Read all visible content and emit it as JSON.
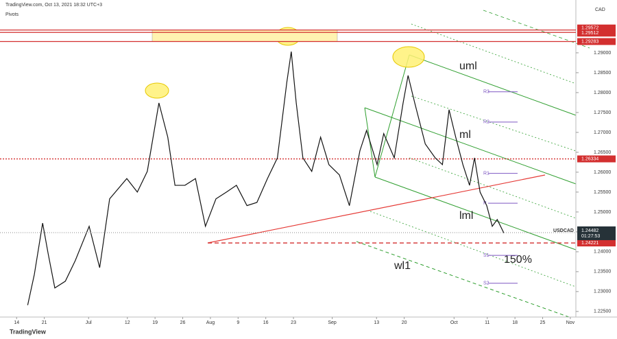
{
  "header": {
    "source": "TradingView.com, Oct 13, 2021 18:32 UTC+3",
    "indicator": "Pivots",
    "currency": "CAD",
    "footer": "TradingView"
  },
  "chart_data": {
    "type": "line",
    "series": [
      {
        "name": "USDCAD",
        "color": "#111111",
        "x": [
          5,
          6.2,
          7.7,
          8.7,
          9.9,
          11.8,
          13.6,
          16.1,
          18,
          19.8,
          22.9,
          24.8,
          26.6,
          28.7,
          30.3,
          31.6,
          33.4,
          35.3,
          37.1,
          39,
          40.9,
          42.7,
          44.6,
          46.4,
          48.3,
          50.1,
          51.8,
          52.6,
          53.5,
          54.7,
          56.3,
          57.9,
          59.4,
          61.3,
          63.1,
          65,
          66.2,
          68.1,
          69.3,
          71.2,
          72.8,
          73.7,
          74.9,
          76.8,
          78.6,
          79.9,
          81.1,
          82.3,
          83.6,
          84.8,
          85.7,
          86.7,
          87.9,
          88.9,
          89.8,
          91
        ],
        "values": [
          1.2266,
          1.2343,
          1.2472,
          1.2395,
          1.2309,
          1.2326,
          1.2378,
          1.2464,
          1.236,
          1.2533,
          1.2584,
          1.255,
          1.2602,
          1.2774,
          1.2688,
          1.2567,
          1.2567,
          1.2584,
          1.2464,
          1.2533,
          1.255,
          1.2567,
          1.2516,
          1.2524,
          1.2584,
          1.2636,
          1.2826,
          1.2903,
          1.2774,
          1.2636,
          1.2602,
          1.2688,
          1.2619,
          1.2593,
          1.2516,
          1.2654,
          1.2705,
          1.2619,
          1.2697,
          1.2636,
          1.2774,
          1.2843,
          1.2774,
          1.2671,
          1.2636,
          1.2619,
          1.2757,
          1.2688,
          1.2619,
          1.2567,
          1.2636,
          1.255,
          1.2516,
          1.2464,
          1.2481,
          1.2447
        ]
      }
    ],
    "last_price": 1.24482,
    "countdown": "01:27:53",
    "xlim": [
      0,
      104
    ],
    "xticks": [
      {
        "value": 3,
        "label": "14"
      },
      {
        "value": 8,
        "label": "21"
      },
      {
        "value": 16,
        "label": "Jul"
      },
      {
        "value": 23,
        "label": "12"
      },
      {
        "value": 28,
        "label": "19"
      },
      {
        "value": 33,
        "label": "26"
      },
      {
        "value": 38,
        "label": "Aug"
      },
      {
        "value": 43,
        "label": "9"
      },
      {
        "value": 48,
        "label": "16"
      },
      {
        "value": 53,
        "label": "23"
      },
      {
        "value": 60,
        "label": "Sep"
      },
      {
        "value": 68,
        "label": "13"
      },
      {
        "value": 73,
        "label": "20"
      },
      {
        "value": 82,
        "label": "Oct"
      },
      {
        "value": 88,
        "label": "11"
      },
      {
        "value": 93,
        "label": "18"
      },
      {
        "value": 98,
        "label": "25"
      },
      {
        "value": 103,
        "label": "Nov"
      }
    ],
    "ylim": [
      1.2236,
      1.3012
    ],
    "yticks": [
      {
        "value": 1.225,
        "label": "1.22500"
      },
      {
        "value": 1.23,
        "label": "1.23000"
      },
      {
        "value": 1.235,
        "label": "1.23500"
      },
      {
        "value": 1.24,
        "label": "1.24000"
      },
      {
        "value": 1.245,
        "label": "1.24500"
      },
      {
        "value": 1.25,
        "label": "1.25000"
      },
      {
        "value": 1.255,
        "label": "1.25500"
      },
      {
        "value": 1.26,
        "label": "1.26000"
      },
      {
        "value": 1.265,
        "label": "1.26500"
      },
      {
        "value": 1.27,
        "label": "1.27000"
      },
      {
        "value": 1.275,
        "label": "1.27500"
      },
      {
        "value": 1.28,
        "label": "1.28000"
      },
      {
        "value": 1.285,
        "label": "1.28500"
      },
      {
        "value": 1.29,
        "label": "1.29000"
      }
    ],
    "levels": [
      {
        "value": 1.29572,
        "color": "#d32f2f",
        "style": "solid"
      },
      {
        "value": 1.29512,
        "color": "#d32f2f",
        "style": "solid"
      },
      {
        "value": 1.29283,
        "color": "#d32f2f",
        "style": "solid"
      },
      {
        "value": 1.26334,
        "color": "#d32f2f",
        "style": "dotted"
      },
      {
        "value": 1.24221,
        "color": "#d32f2f",
        "style": "dashed"
      }
    ],
    "pivots": [
      {
        "label": "R3",
        "value": 1.2802
      },
      {
        "label": "R2",
        "value": 1.2726
      },
      {
        "label": "R1",
        "value": 1.2597
      },
      {
        "label": "P",
        "value": 1.2522
      },
      {
        "label": "S1",
        "value": 1.2391
      },
      {
        "label": "S2",
        "value": 1.2321
      }
    ],
    "annotations": [
      "uml",
      "ml",
      "lml",
      "wl1",
      "150%"
    ]
  }
}
